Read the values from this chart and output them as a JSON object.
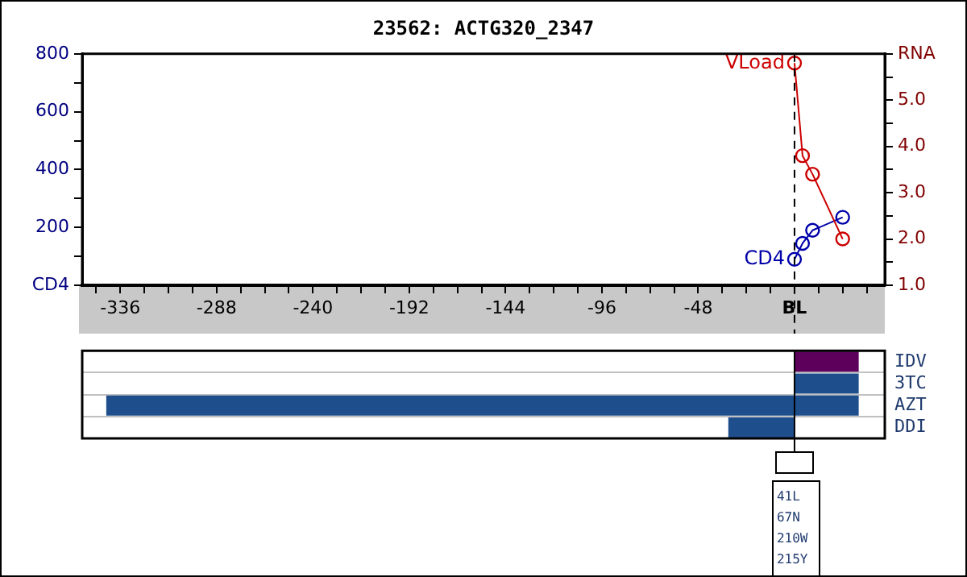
{
  "chart_data": [
    {
      "type": "line",
      "title": "23562: ACTG320_2347",
      "xlim": [
        -355,
        45
      ],
      "xticks": [
        {
          "value": -348,
          "label": null
        },
        -336,
        {
          "value": -324,
          "label": null
        },
        {
          "value": -312,
          "label": null
        },
        {
          "value": -300,
          "label": null
        },
        -288,
        {
          "value": -276,
          "label": null
        },
        {
          "value": -264,
          "label": null
        },
        {
          "value": -252,
          "label": null
        },
        -240,
        {
          "value": -228,
          "label": null
        },
        {
          "value": -216,
          "label": null
        },
        {
          "value": -204,
          "label": null
        },
        -192,
        {
          "value": -180,
          "label": null
        },
        {
          "value": -168,
          "label": null
        },
        {
          "value": -156,
          "label": null
        },
        -144,
        {
          "value": -132,
          "label": null
        },
        {
          "value": -120,
          "label": null
        },
        {
          "value": -108,
          "label": null
        },
        -96,
        {
          "value": -84,
          "label": null
        },
        {
          "value": -72,
          "label": null
        },
        {
          "value": -60,
          "label": null
        },
        -48,
        {
          "value": -36,
          "label": null
        },
        {
          "value": -24,
          "label": null
        },
        {
          "value": -12,
          "label": null
        },
        {
          "value": 0,
          "label": "BL"
        },
        {
          "value": 12,
          "label": null
        },
        {
          "value": 24,
          "label": null
        },
        {
          "value": 36,
          "label": null
        }
      ],
      "ylim": [
        0,
        800
      ],
      "yticks": [
        {
          "value": 0,
          "label": "CD4"
        },
        {
          "value": 100,
          "label": null
        },
        200,
        {
          "value": 300,
          "label": null
        },
        400,
        {
          "value": 500,
          "label": null
        },
        600,
        {
          "value": 700,
          "label": null
        },
        800
      ],
      "y2lim": [
        1,
        6
      ],
      "y2ticks": [
        {
          "value": 1,
          "label": "1.0"
        },
        {
          "value": 1.5,
          "label": null
        },
        {
          "value": 2,
          "label": "2.0"
        },
        {
          "value": 2.5,
          "label": null
        },
        {
          "value": 3,
          "label": "3.0"
        },
        {
          "value": 3.5,
          "label": null
        },
        {
          "value": 4,
          "label": "4.0"
        },
        {
          "value": 4.5,
          "label": null
        },
        {
          "value": 5,
          "label": "5.0"
        },
        {
          "value": 5.5,
          "label": null
        },
        {
          "value": 6,
          "label": "RNA"
        }
      ],
      "series": [
        {
          "name": "VLoad",
          "color": "#cc0000",
          "axis": "y2",
          "x": [
            0,
            4,
            9,
            24
          ],
          "values": [
            5.8,
            3.8,
            3.4,
            2.0
          ]
        },
        {
          "name": "CD4",
          "color": "#0000aa",
          "x": [
            0,
            4,
            9,
            24
          ],
          "values": [
            90,
            145,
            190,
            235
          ]
        }
      ],
      "marker": "circle",
      "line_style": "solid",
      "legend": false,
      "grid": false,
      "ref_lines": [
        {
          "axis": "x",
          "value": 0,
          "line_style": "dashed",
          "color": "#000000"
        }
      ]
    },
    {
      "type": "bar",
      "orientation": "horizontal",
      "categories": [
        "IDV",
        "3TC",
        "AZT",
        "DDI"
      ],
      "base": [
        0,
        0,
        -343,
        -33
      ],
      "values": [
        32,
        32,
        375,
        33
      ],
      "colors": [
        "#5c005c",
        "#1f4e8c",
        "#1f4e8c",
        "#1f4e8c"
      ],
      "xlim": [
        -355,
        45
      ],
      "tick_labels": "y",
      "grid": "y",
      "legend": false,
      "ref_lines": [
        {
          "axis": "x",
          "value": 0,
          "line_style": "solid",
          "color": "#000000"
        }
      ],
      "annotations": [
        "41L",
        "67N",
        "210W",
        "215Y"
      ]
    }
  ]
}
